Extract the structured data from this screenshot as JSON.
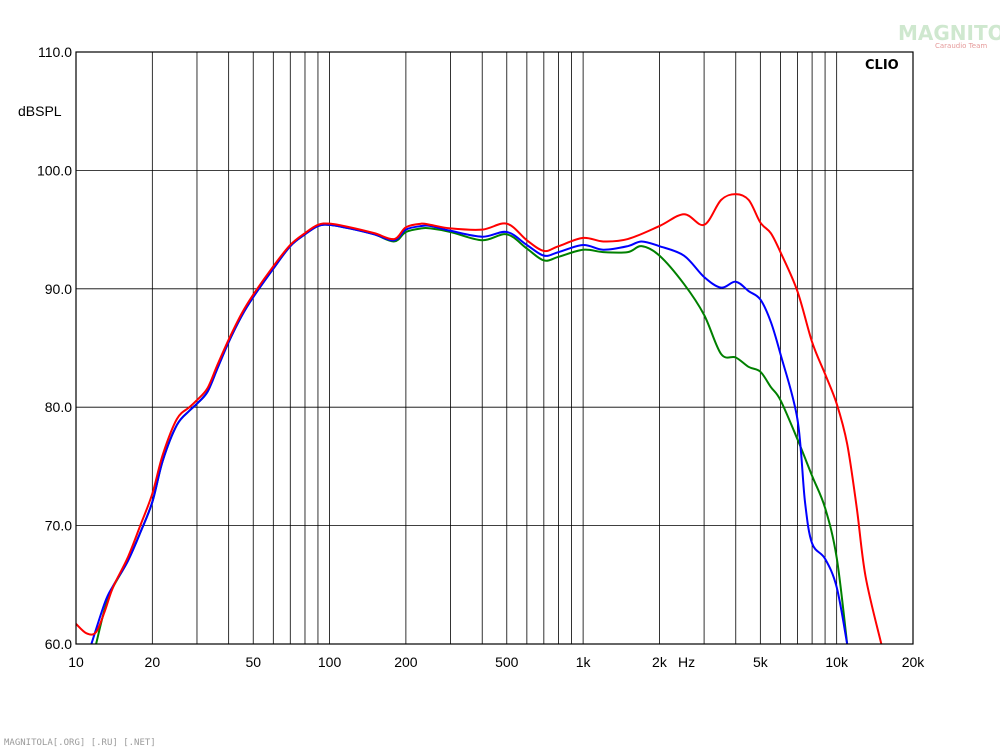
{
  "chart_data": {
    "type": "line",
    "brand": "CLIO",
    "ylabel": "dBSPL",
    "xlabel": "Hz",
    "x_scale": "log",
    "xlim": [
      10,
      20000
    ],
    "ylim": [
      60,
      110
    ],
    "grid": true,
    "y_ticks": [
      {
        "value": 60,
        "label": "60.0"
      },
      {
        "value": 70,
        "label": "70.0"
      },
      {
        "value": 80,
        "label": "80.0"
      },
      {
        "value": 90,
        "label": "90.0"
      },
      {
        "value": 100,
        "label": "100.0"
      },
      {
        "value": 110,
        "label": "110.0"
      }
    ],
    "x_ticks": [
      {
        "value": 10,
        "label": "10"
      },
      {
        "value": 20,
        "label": "20"
      },
      {
        "value": 50,
        "label": "50"
      },
      {
        "value": 100,
        "label": "100"
      },
      {
        "value": 200,
        "label": "200"
      },
      {
        "value": 500,
        "label": "500"
      },
      {
        "value": 1000,
        "label": "1k"
      },
      {
        "value": 2000,
        "label": "2k"
      },
      {
        "value": 5000,
        "label": "5k"
      },
      {
        "value": 10000,
        "label": "10k"
      },
      {
        "value": 20000,
        "label": "20k"
      }
    ],
    "series": [
      {
        "color": "#008000",
        "points": [
          [
            12,
            60
          ],
          [
            13,
            63
          ],
          [
            14,
            64.8
          ],
          [
            16,
            67
          ],
          [
            18,
            69.5
          ],
          [
            20,
            72
          ],
          [
            22,
            75.5
          ],
          [
            25,
            78.5
          ],
          [
            28,
            79.7
          ],
          [
            30,
            80.3
          ],
          [
            33,
            81.3
          ],
          [
            36,
            83.2
          ],
          [
            40,
            85.5
          ],
          [
            45,
            87.7
          ],
          [
            50,
            89.3
          ],
          [
            60,
            91.7
          ],
          [
            70,
            93.6
          ],
          [
            80,
            94.6
          ],
          [
            90,
            95.3
          ],
          [
            100,
            95.4
          ],
          [
            120,
            95.1
          ],
          [
            150,
            94.6
          ],
          [
            180,
            94
          ],
          [
            200,
            94.8
          ],
          [
            230,
            95.1
          ],
          [
            250,
            95.1
          ],
          [
            300,
            94.8
          ],
          [
            400,
            94.1
          ],
          [
            500,
            94.6
          ],
          [
            600,
            93.4
          ],
          [
            700,
            92.4
          ],
          [
            800,
            92.7
          ],
          [
            1000,
            93.3
          ],
          [
            1200,
            93.1
          ],
          [
            1500,
            93.1
          ],
          [
            1700,
            93.6
          ],
          [
            2000,
            92.8
          ],
          [
            2500,
            90.4
          ],
          [
            3000,
            87.8
          ],
          [
            3500,
            84.5
          ],
          [
            4000,
            84.2
          ],
          [
            4500,
            83.4
          ],
          [
            5000,
            83
          ],
          [
            5500,
            81.7
          ],
          [
            6000,
            80.6
          ],
          [
            7000,
            77.3
          ],
          [
            8000,
            74.2
          ],
          [
            9000,
            71.5
          ],
          [
            10000,
            67.3
          ],
          [
            11000,
            60
          ]
        ]
      },
      {
        "color": "#0000ff",
        "points": [
          [
            11.5,
            60
          ],
          [
            13,
            63.5
          ],
          [
            14,
            64.9
          ],
          [
            16,
            67
          ],
          [
            18,
            69.5
          ],
          [
            20,
            72
          ],
          [
            22,
            75.5
          ],
          [
            25,
            78.5
          ],
          [
            28,
            79.7
          ],
          [
            30,
            80.3
          ],
          [
            33,
            81.3
          ],
          [
            36,
            83.2
          ],
          [
            40,
            85.5
          ],
          [
            45,
            87.7
          ],
          [
            50,
            89.3
          ],
          [
            60,
            91.7
          ],
          [
            70,
            93.6
          ],
          [
            80,
            94.6
          ],
          [
            90,
            95.3
          ],
          [
            100,
            95.4
          ],
          [
            120,
            95.1
          ],
          [
            150,
            94.6
          ],
          [
            180,
            94.1
          ],
          [
            200,
            95
          ],
          [
            230,
            95.3
          ],
          [
            250,
            95.3
          ],
          [
            300,
            94.9
          ],
          [
            400,
            94.4
          ],
          [
            500,
            94.8
          ],
          [
            600,
            93.7
          ],
          [
            700,
            92.8
          ],
          [
            800,
            93.1
          ],
          [
            1000,
            93.7
          ],
          [
            1200,
            93.3
          ],
          [
            1500,
            93.6
          ],
          [
            1700,
            94
          ],
          [
            2000,
            93.6
          ],
          [
            2500,
            92.8
          ],
          [
            3000,
            91
          ],
          [
            3500,
            90.1
          ],
          [
            4000,
            90.6
          ],
          [
            4500,
            89.8
          ],
          [
            5000,
            89.1
          ],
          [
            5500,
            87.2
          ],
          [
            6000,
            84.5
          ],
          [
            7000,
            79
          ],
          [
            7500,
            72
          ],
          [
            8000,
            68.5
          ],
          [
            9000,
            67.2
          ],
          [
            10000,
            64.8
          ],
          [
            11000,
            60
          ]
        ]
      },
      {
        "color": "#ff0000",
        "points": [
          [
            10,
            61.7
          ],
          [
            11,
            60.9
          ],
          [
            12,
            61
          ],
          [
            13,
            62.8
          ],
          [
            14,
            64.8
          ],
          [
            16,
            67.3
          ],
          [
            18,
            70.1
          ],
          [
            20,
            72.7
          ],
          [
            22,
            76
          ],
          [
            25,
            79
          ],
          [
            28,
            80
          ],
          [
            30,
            80.6
          ],
          [
            33,
            81.6
          ],
          [
            36,
            83.5
          ],
          [
            40,
            85.7
          ],
          [
            45,
            87.9
          ],
          [
            50,
            89.5
          ],
          [
            60,
            91.9
          ],
          [
            70,
            93.7
          ],
          [
            80,
            94.7
          ],
          [
            90,
            95.4
          ],
          [
            100,
            95.5
          ],
          [
            120,
            95.2
          ],
          [
            150,
            94.7
          ],
          [
            180,
            94.2
          ],
          [
            200,
            95.2
          ],
          [
            230,
            95.5
          ],
          [
            250,
            95.4
          ],
          [
            300,
            95.1
          ],
          [
            400,
            95
          ],
          [
            500,
            95.5
          ],
          [
            600,
            94.1
          ],
          [
            700,
            93.2
          ],
          [
            800,
            93.6
          ],
          [
            1000,
            94.3
          ],
          [
            1200,
            94
          ],
          [
            1500,
            94.2
          ],
          [
            2000,
            95.3
          ],
          [
            2500,
            96.3
          ],
          [
            3000,
            95.4
          ],
          [
            3500,
            97.5
          ],
          [
            4000,
            98
          ],
          [
            4500,
            97.5
          ],
          [
            5000,
            95.6
          ],
          [
            5500,
            94.7
          ],
          [
            6000,
            93.1
          ],
          [
            7000,
            89.8
          ],
          [
            8000,
            85.5
          ],
          [
            9000,
            82.8
          ],
          [
            10000,
            80.3
          ],
          [
            11000,
            76.9
          ],
          [
            12000,
            71.5
          ],
          [
            13000,
            65.7
          ],
          [
            15000,
            60
          ]
        ]
      }
    ]
  },
  "watermark": {
    "logo_text": "MAGNITOLA",
    "logo_sub": "Caraudio Team",
    "footer": "MAGNITOLA[.ORG] [.RU] [.NET]"
  }
}
